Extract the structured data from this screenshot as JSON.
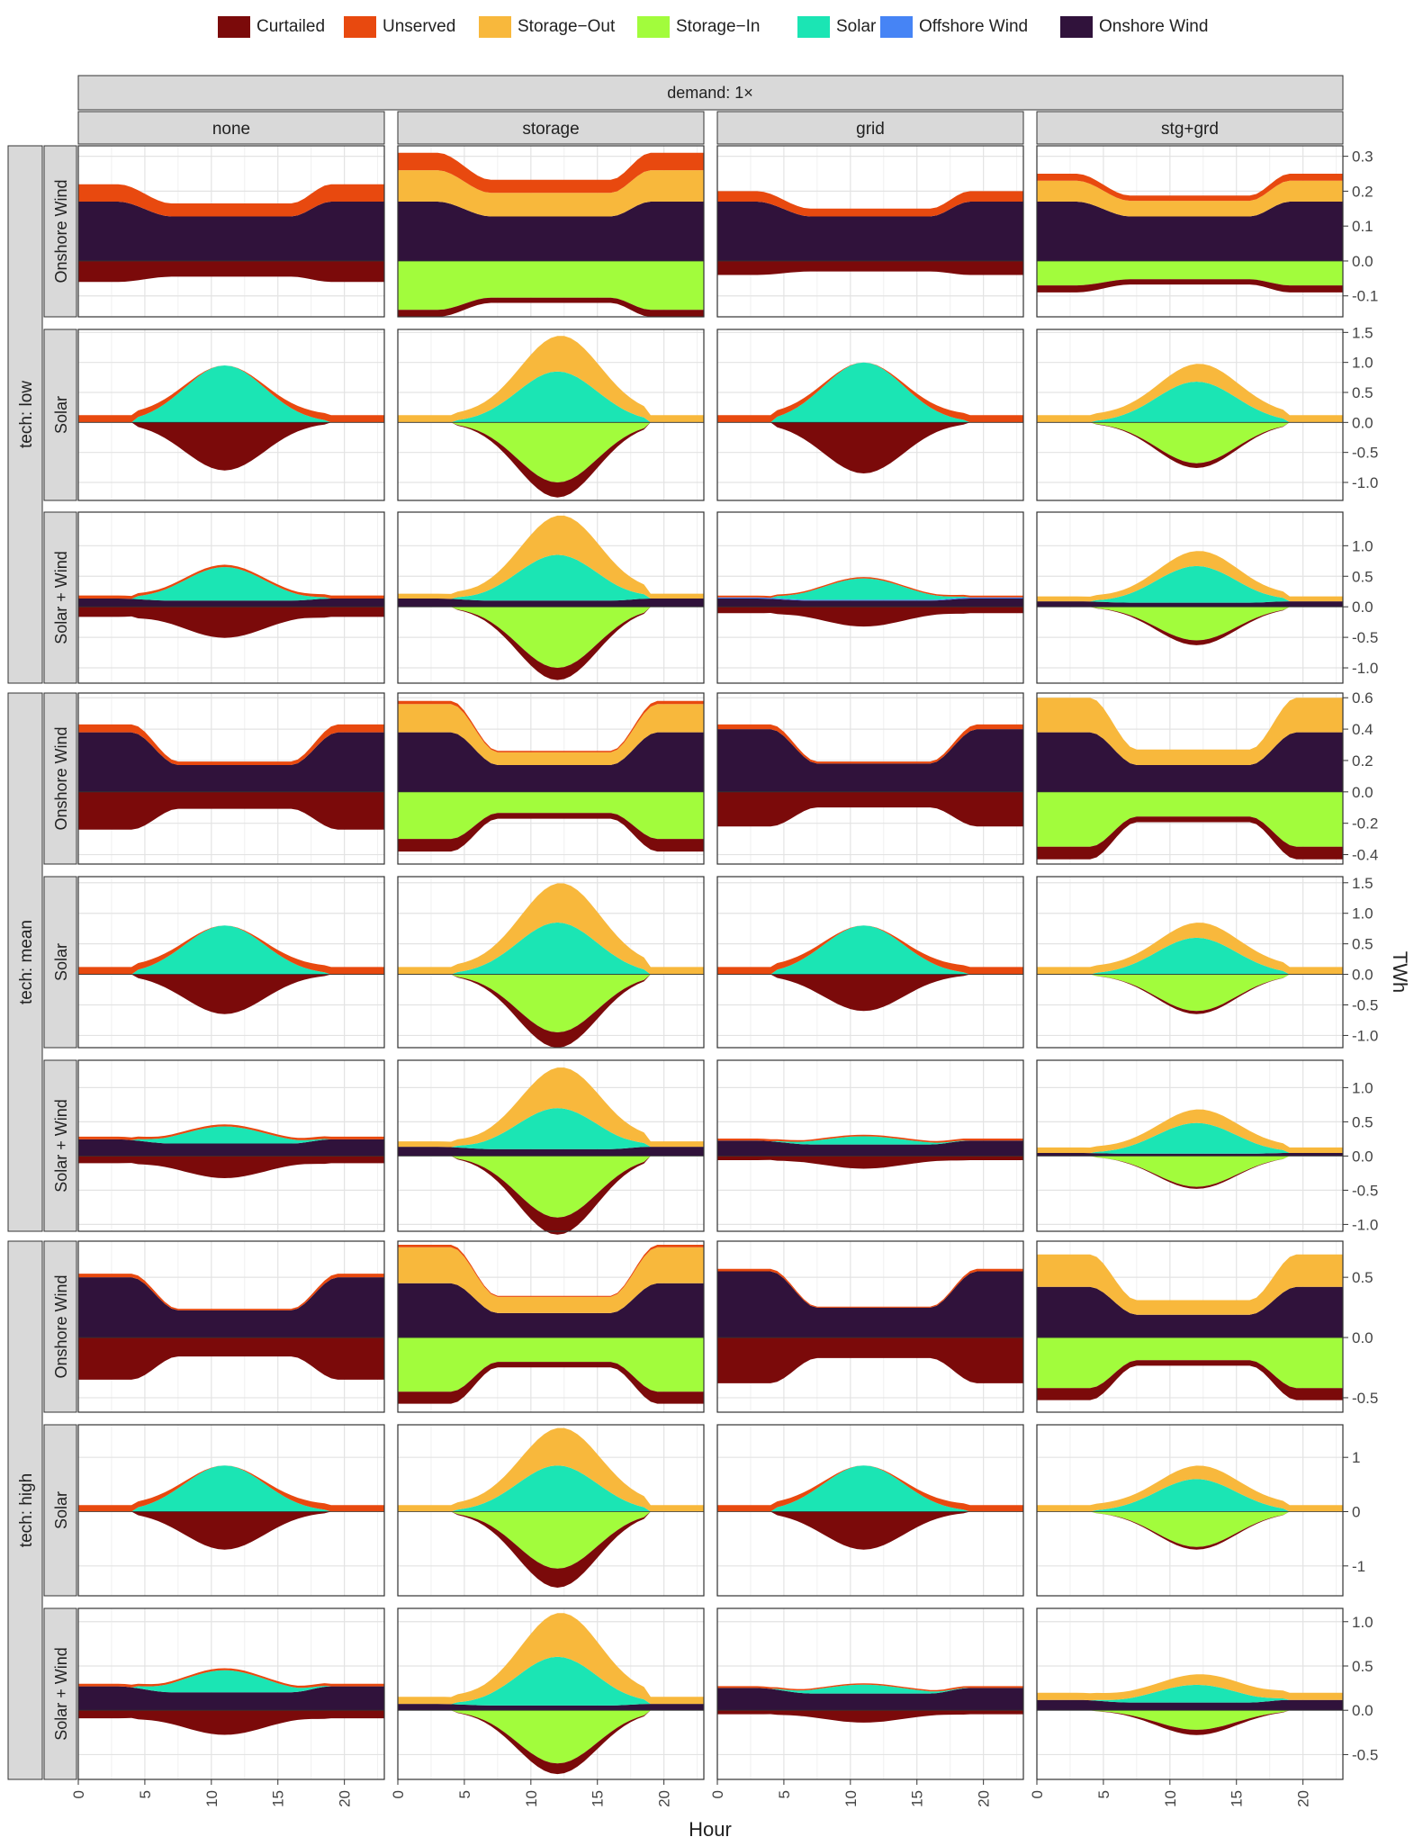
{
  "legend": [
    {
      "name": "Curtailed",
      "color": "#7B0A0A"
    },
    {
      "name": "Unserved",
      "color": "#E8490F"
    },
    {
      "name": "Storage−Out",
      "color": "#F8B83C"
    },
    {
      "name": "Storage−In",
      "color": "#A2FC3C"
    },
    {
      "name": "Solar",
      "color": "#1BE5B4"
    },
    {
      "name": "Offshore Wind",
      "color": "#4684F5"
    },
    {
      "name": "Onshore Wind",
      "color": "#30123B"
    }
  ],
  "chart_data": {
    "type": "area",
    "subtype": "stacked area, faceted grid (positive stack above zero, negative stack below)",
    "top_strip": "demand: 1×",
    "columns": [
      "none",
      "storage",
      "grid",
      "stg+grd"
    ],
    "row_groups": [
      "tech: low",
      "tech: mean",
      "tech: high"
    ],
    "rows": [
      "Onshore Wind",
      "Solar",
      "Solar + Wind"
    ],
    "xlabel": "Hour",
    "ylabel": "TWh",
    "xlim": [
      0,
      23
    ],
    "x_ticks": [
      "0",
      "5",
      "10",
      "15",
      "20"
    ],
    "grid": true,
    "legend_position": "top",
    "row_scales": [
      {
        "ylim": [
          -0.16,
          0.33
        ],
        "ticks": [
          "-0.1",
          "0.0",
          "0.1",
          "0.2",
          "0.3"
        ]
      },
      {
        "ylim": [
          -1.3,
          1.55
        ],
        "ticks": [
          "-1.0",
          "-0.5",
          "0.0",
          "0.5",
          "1.0",
          "1.5"
        ]
      },
      {
        "ylim": [
          -1.25,
          1.55
        ],
        "ticks": [
          "-1.0",
          "-0.5",
          "0.0",
          "0.5",
          "1.0"
        ]
      },
      {
        "ylim": [
          -0.46,
          0.63
        ],
        "ticks": [
          "-0.4",
          "-0.2",
          "0.0",
          "0.2",
          "0.4",
          "0.6"
        ]
      },
      {
        "ylim": [
          -1.2,
          1.6
        ],
        "ticks": [
          "-1.0",
          "-0.5",
          "0.0",
          "0.5",
          "1.0",
          "1.5"
        ]
      },
      {
        "ylim": [
          -1.1,
          1.4
        ],
        "ticks": [
          "-1.0",
          "-0.5",
          "0.0",
          "0.5",
          "1.0"
        ]
      },
      {
        "ylim": [
          -0.62,
          0.8
        ],
        "ticks": [
          "-0.5",
          "0.0",
          "0.5"
        ]
      },
      {
        "ylim": [
          -1.55,
          1.6
        ],
        "ticks": [
          "-1",
          "0",
          "1"
        ]
      },
      {
        "ylim": [
          -0.78,
          1.15
        ],
        "ticks": [
          "-0.5",
          "0.0",
          "0.5",
          "1.0"
        ]
      }
    ],
    "panels": [
      [
        {
          "gen": {
            "Onshore Wind": 0.17
          },
          "pos": {
            "Unserved": 0.05
          },
          "neg": {
            "Curtailed": 0.06
          },
          "shape": "wind"
        },
        {
          "gen": {
            "Onshore Wind": 0.17
          },
          "pos": {
            "Storage−Out": 0.09,
            "Unserved": 0.05
          },
          "neg": {
            "Storage−In": 0.14,
            "Curtailed": 0.02
          },
          "shape": "wind"
        },
        {
          "gen": {
            "Onshore Wind": 0.17
          },
          "pos": {
            "Unserved": 0.03
          },
          "neg": {
            "Curtailed": 0.04
          },
          "shape": "wind"
        },
        {
          "gen": {
            "Onshore Wind": 0.17
          },
          "pos": {
            "Storage−Out": 0.06,
            "Unserved": 0.02
          },
          "neg": {
            "Storage−In": 0.07,
            "Curtailed": 0.02
          },
          "shape": "wind"
        }
      ],
      [
        {
          "gen": {
            "Solar": 0.95
          },
          "pos": {
            "Unserved": 0.12
          },
          "neg": {
            "Curtailed": 0.8
          },
          "shape": "solar",
          "peak": 11
        },
        {
          "gen": {
            "Solar": 0.85
          },
          "pos": {
            "Storage−Out": 0.6
          },
          "neg": {
            "Storage−In": 1.0,
            "Curtailed": 0.25
          },
          "shape": "solar",
          "peak": 12
        },
        {
          "gen": {
            "Solar": 1.0
          },
          "pos": {
            "Unserved": 0.12
          },
          "neg": {
            "Curtailed": 0.85
          },
          "shape": "solar",
          "peak": 11
        },
        {
          "gen": {
            "Solar": 0.68
          },
          "pos": {
            "Storage−Out": 0.3
          },
          "neg": {
            "Storage−In": 0.68,
            "Curtailed": 0.08
          },
          "shape": "solar",
          "peak": 12
        }
      ],
      [
        {
          "gen": {
            "Onshore Wind": 0.15,
            "Solar": 0.55
          },
          "pos": {
            "Unserved": 0.05
          },
          "neg": {
            "Curtailed": 0.55
          },
          "shape": "mixed",
          "peak": 11
        },
        {
          "gen": {
            "Onshore Wind": 0.15,
            "Solar": 0.75
          },
          "pos": {
            "Storage−Out": 0.65
          },
          "neg": {
            "Storage−In": 1.0,
            "Curtailed": 0.2
          },
          "shape": "mixed",
          "peak": 12
        },
        {
          "gen": {
            "Onshore Wind": 0.15,
            "Offshore Wind": 0.02,
            "Solar": 0.35
          },
          "pos": {
            "Unserved": 0.03
          },
          "neg": {
            "Curtailed": 0.35
          },
          "shape": "mixed",
          "peak": 11
        },
        {
          "gen": {
            "Onshore Wind": 0.1,
            "Solar": 0.6
          },
          "pos": {
            "Storage−Out": 0.25
          },
          "neg": {
            "Storage−In": 0.55,
            "Curtailed": 0.08
          },
          "shape": "mixed",
          "peak": 12
        }
      ],
      [
        {
          "gen": {
            "Onshore Wind": 0.38
          },
          "pos": {
            "Unserved": 0.05
          },
          "neg": {
            "Curtailed": 0.24
          },
          "shape": "windbig"
        },
        {
          "gen": {
            "Onshore Wind": 0.38
          },
          "pos": {
            "Storage−Out": 0.18,
            "Unserved": 0.02
          },
          "neg": {
            "Storage−In": 0.3,
            "Curtailed": 0.08
          },
          "shape": "windbig"
        },
        {
          "gen": {
            "Onshore Wind": 0.4
          },
          "pos": {
            "Unserved": 0.03
          },
          "neg": {
            "Curtailed": 0.22
          },
          "shape": "windbig"
        },
        {
          "gen": {
            "Onshore Wind": 0.38
          },
          "pos": {
            "Storage−Out": 0.22
          },
          "neg": {
            "Storage−In": 0.35,
            "Curtailed": 0.08
          },
          "shape": "windbig"
        }
      ],
      [
        {
          "gen": {
            "Solar": 0.8
          },
          "pos": {
            "Unserved": 0.12
          },
          "neg": {
            "Curtailed": 0.65
          },
          "shape": "solar",
          "peak": 11
        },
        {
          "gen": {
            "Solar": 0.85
          },
          "pos": {
            "Storage−Out": 0.65
          },
          "neg": {
            "Storage−In": 0.95,
            "Curtailed": 0.25
          },
          "shape": "solar",
          "peak": 12
        },
        {
          "gen": {
            "Solar": 0.8
          },
          "pos": {
            "Unserved": 0.12
          },
          "neg": {
            "Curtailed": 0.6
          },
          "shape": "solar",
          "peak": 11
        },
        {
          "gen": {
            "Solar": 0.6
          },
          "pos": {
            "Storage−Out": 0.25
          },
          "neg": {
            "Storage−In": 0.6,
            "Curtailed": 0.05
          },
          "shape": "solar",
          "peak": 12
        }
      ],
      [
        {
          "gen": {
            "Onshore Wind": 0.27,
            "Solar": 0.25
          },
          "pos": {
            "Unserved": 0.04
          },
          "neg": {
            "Curtailed": 0.35
          },
          "shape": "mixed",
          "peak": 11
        },
        {
          "gen": {
            "Onshore Wind": 0.15,
            "Solar": 0.6
          },
          "pos": {
            "Storage−Out": 0.6
          },
          "neg": {
            "Storage−In": 0.9,
            "Curtailed": 0.25
          },
          "shape": "mixed",
          "peak": 12
        },
        {
          "gen": {
            "Onshore Wind": 0.25,
            "Solar": 0.12
          },
          "pos": {
            "Unserved": 0.03
          },
          "neg": {
            "Curtailed": 0.2
          },
          "shape": "mixed",
          "peak": 11
        },
        {
          "gen": {
            "Onshore Wind": 0.05,
            "Solar": 0.45
          },
          "pos": {
            "Storage−Out": 0.2
          },
          "neg": {
            "Storage−In": 0.45,
            "Curtailed": 0.03
          },
          "shape": "mixed",
          "peak": 12
        }
      ],
      [
        {
          "gen": {
            "Onshore Wind": 0.5
          },
          "pos": {
            "Unserved": 0.03
          },
          "neg": {
            "Curtailed": 0.35
          },
          "shape": "windbig"
        },
        {
          "gen": {
            "Onshore Wind": 0.45
          },
          "pos": {
            "Storage−Out": 0.3,
            "Unserved": 0.02
          },
          "neg": {
            "Storage−In": 0.45,
            "Curtailed": 0.1
          },
          "shape": "windbig"
        },
        {
          "gen": {
            "Onshore Wind": 0.55
          },
          "pos": {
            "Unserved": 0.02
          },
          "neg": {
            "Curtailed": 0.38
          },
          "shape": "windbig"
        },
        {
          "gen": {
            "Onshore Wind": 0.42
          },
          "pos": {
            "Storage−Out": 0.27
          },
          "neg": {
            "Storage−In": 0.42,
            "Curtailed": 0.1
          },
          "shape": "windbig"
        }
      ],
      [
        {
          "gen": {
            "Solar": 0.85
          },
          "pos": {
            "Unserved": 0.12
          },
          "neg": {
            "Curtailed": 0.7
          },
          "shape": "solar",
          "peak": 11
        },
        {
          "gen": {
            "Solar": 0.85
          },
          "pos": {
            "Storage−Out": 0.7
          },
          "neg": {
            "Storage−In": 1.05,
            "Curtailed": 0.35
          },
          "shape": "solar",
          "peak": 12
        },
        {
          "gen": {
            "Solar": 0.85
          },
          "pos": {
            "Unserved": 0.12
          },
          "neg": {
            "Curtailed": 0.7
          },
          "shape": "solar",
          "peak": 11
        },
        {
          "gen": {
            "Solar": 0.6
          },
          "pos": {
            "Storage−Out": 0.25
          },
          "neg": {
            "Storage−In": 0.65,
            "Curtailed": 0.05
          },
          "shape": "solar",
          "peak": 12
        }
      ],
      [
        {
          "gen": {
            "Onshore Wind": 0.3,
            "Solar": 0.25
          },
          "pos": {
            "Unserved": 0.03
          },
          "neg": {
            "Curtailed": 0.3
          },
          "shape": "mixed",
          "peak": 11
        },
        {
          "gen": {
            "Onshore Wind": 0.08,
            "Solar": 0.55
          },
          "pos": {
            "Storage−Out": 0.5
          },
          "neg": {
            "Storage−In": 0.6,
            "Curtailed": 0.12
          },
          "shape": "mixed",
          "peak": 12
        },
        {
          "gen": {
            "Onshore Wind": 0.28,
            "Solar": 0.1
          },
          "pos": {
            "Unserved": 0.02
          },
          "neg": {
            "Curtailed": 0.15
          },
          "shape": "mixed",
          "peak": 11
        },
        {
          "gen": {
            "Onshore Wind": 0.13,
            "Solar": 0.2
          },
          "pos": {
            "Storage−Out": 0.12
          },
          "neg": {
            "Storage−In": 0.22,
            "Curtailed": 0.06
          },
          "shape": "mixed",
          "peak": 12
        }
      ]
    ]
  }
}
